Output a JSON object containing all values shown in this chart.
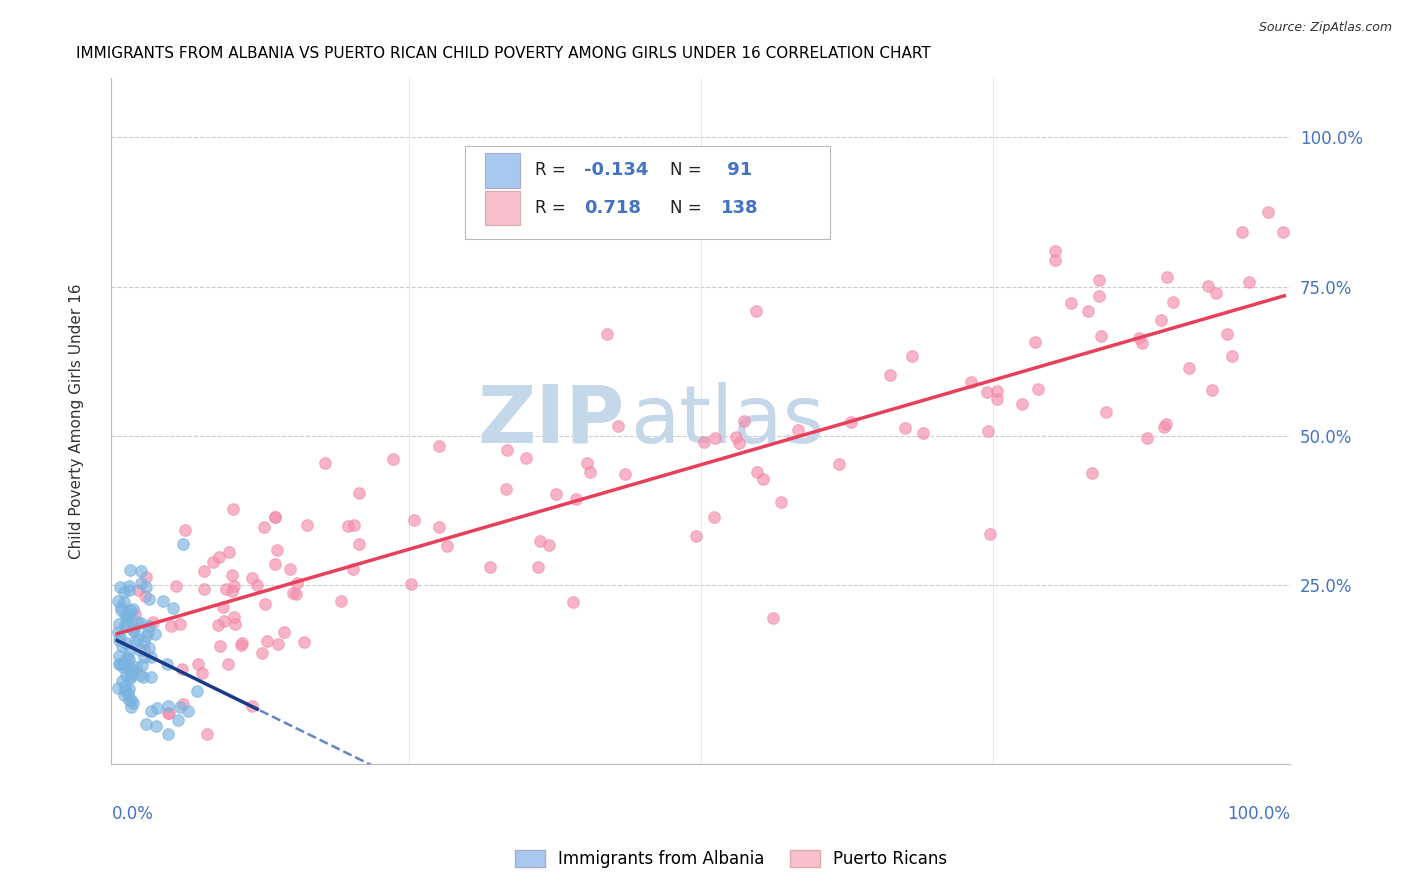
{
  "title": "IMMIGRANTS FROM ALBANIA VS PUERTO RICAN CHILD POVERTY AMONG GIRLS UNDER 16 CORRELATION CHART",
  "source": "Source: ZipAtlas.com",
  "ylabel": "Child Poverty Among Girls Under 16",
  "albania_R": -0.134,
  "albania_N": 91,
  "puertorico_R": 0.718,
  "puertorico_N": 138,
  "blue_scatter_color": "#7ab3e0",
  "blue_scatter_edge": "#5590cc",
  "pink_scatter_color": "#f48caa",
  "pink_scatter_edge": "#e87090",
  "blue_line_color": "#2255aa",
  "blue_line_dash": true,
  "pink_line_color": "#e8405a",
  "watermark_zip": "ZIP",
  "watermark_atlas": "atlas",
  "watermark_color": "#c5d8ea",
  "grid_color": "#cccccc",
  "title_fontsize": 11,
  "axis_label_color": "#4472c4",
  "legend_text_color": "#333333",
  "background_color": "#ffffff",
  "scatter_size": 70,
  "scatter_alpha": 0.65,
  "xlim": [
    -0.005,
    1.005
  ],
  "ylim": [
    -0.05,
    1.1
  ]
}
